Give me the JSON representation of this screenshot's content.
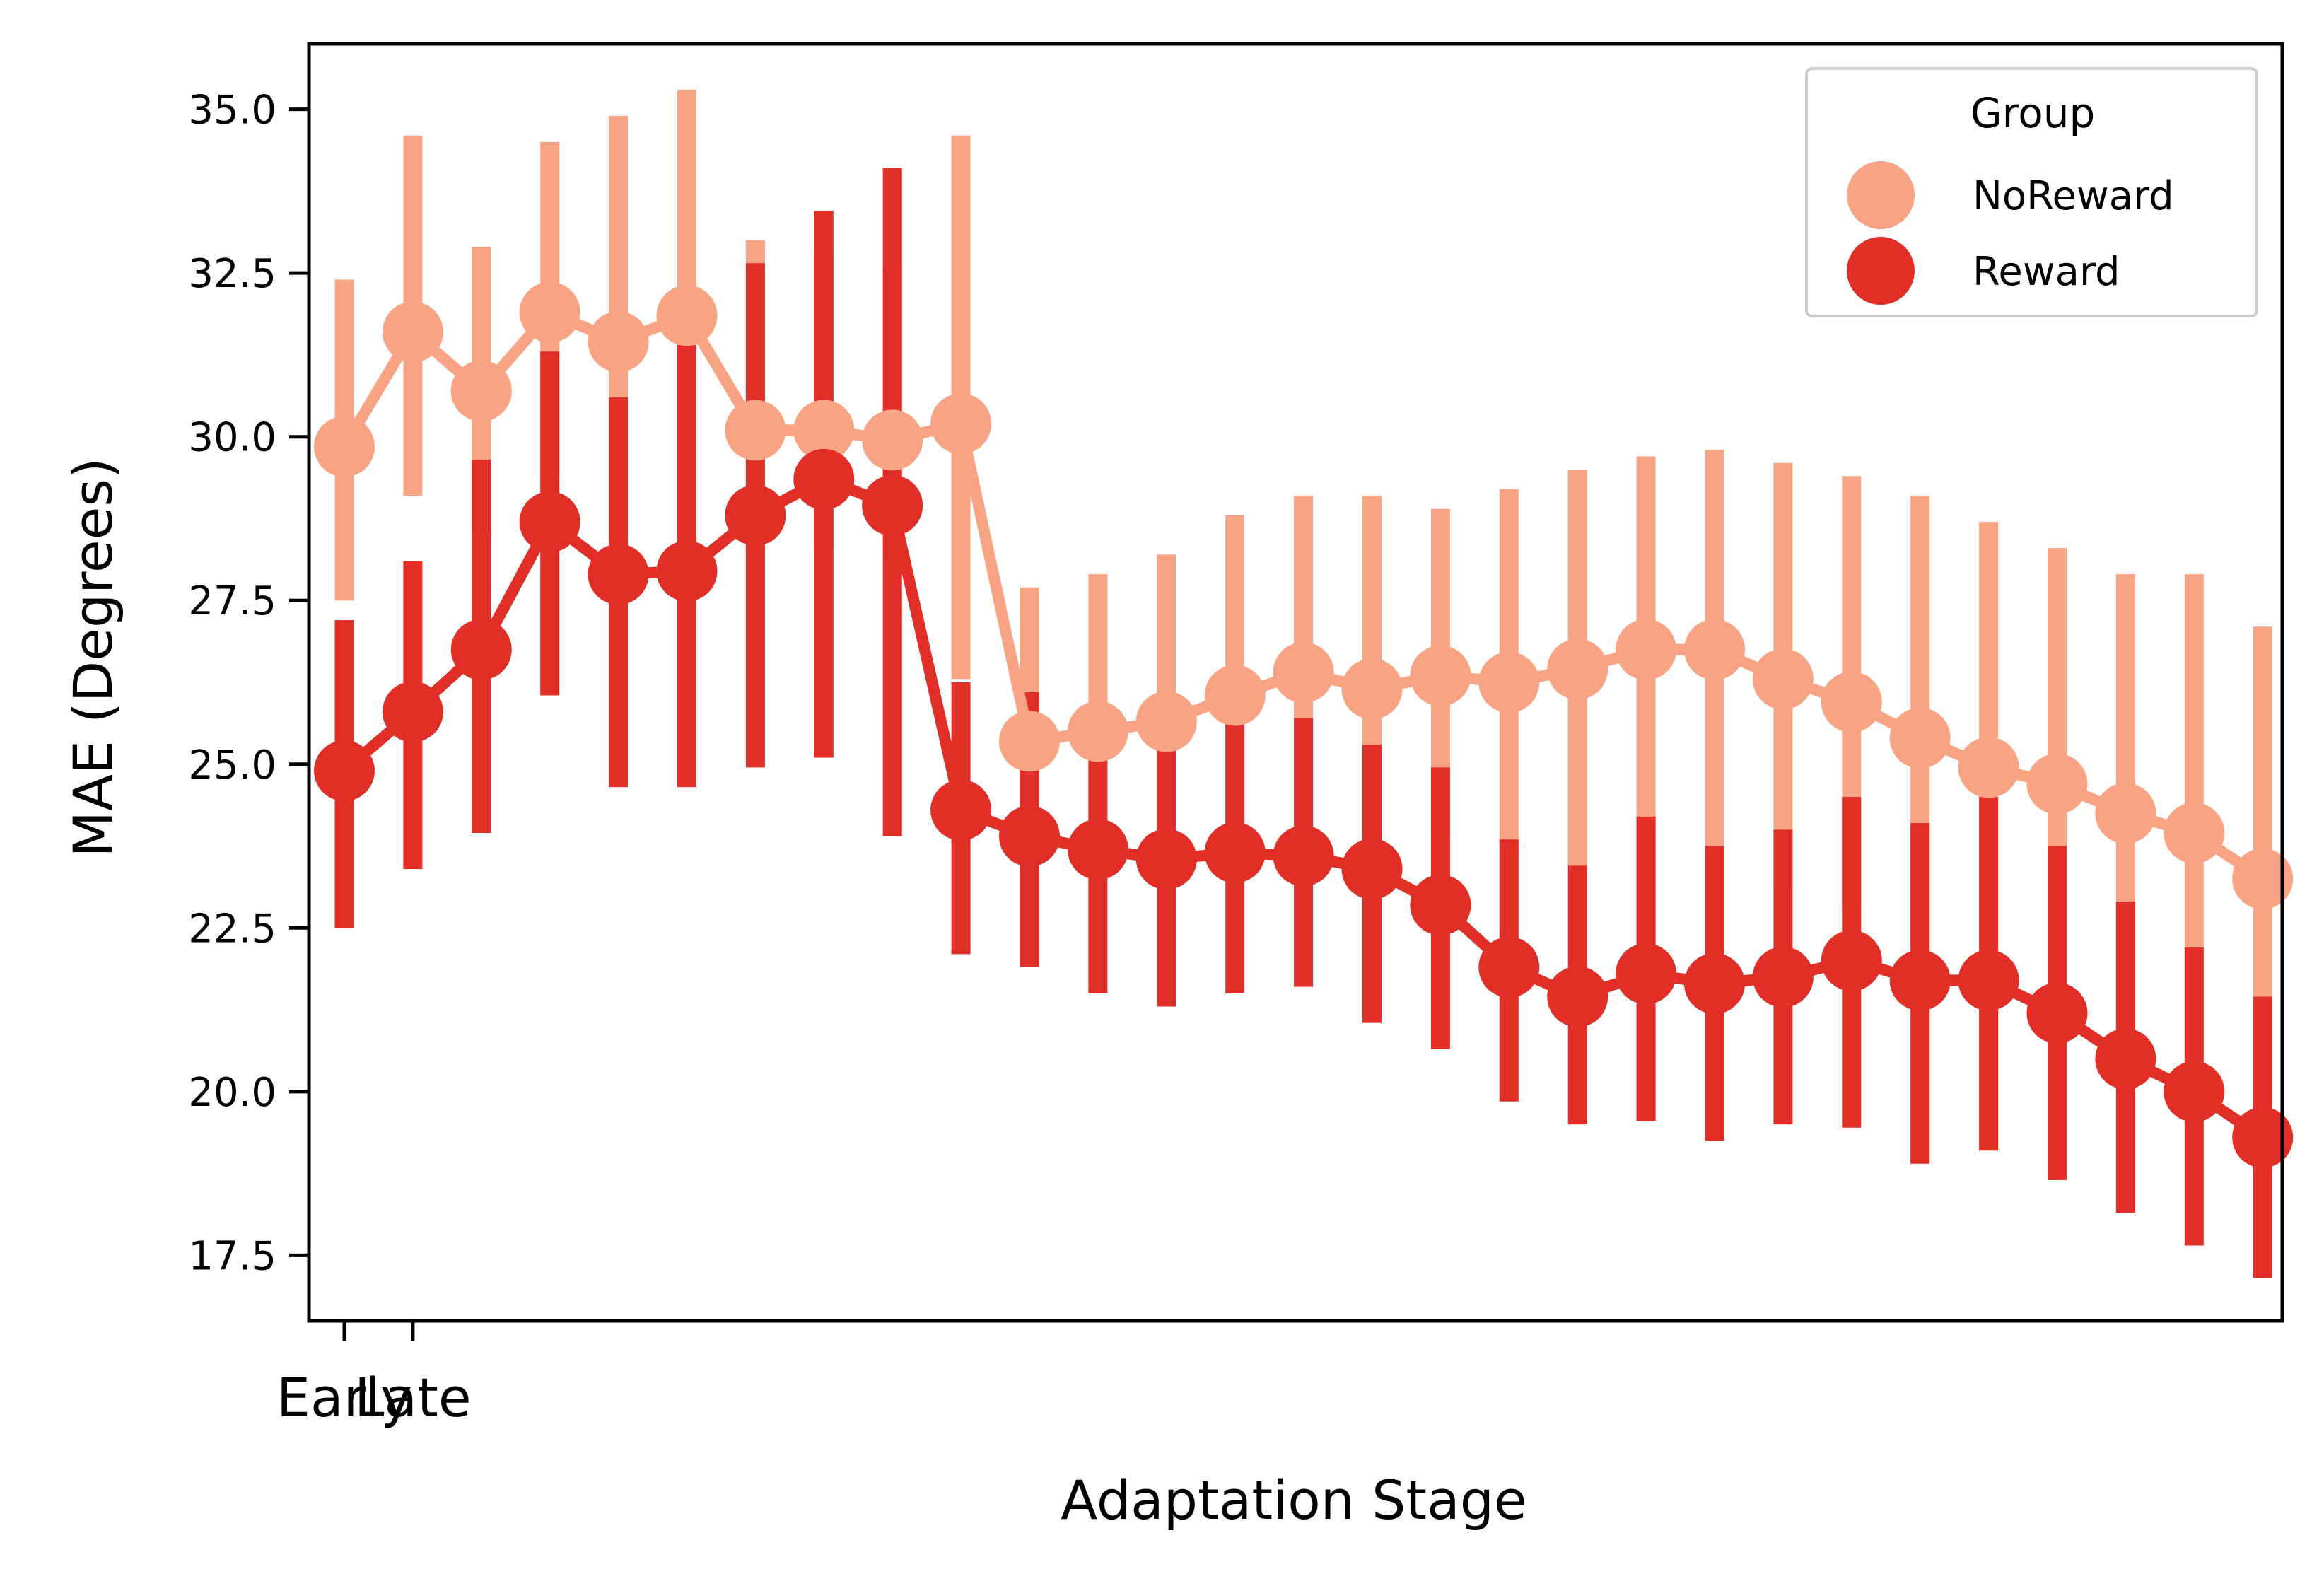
{
  "chart_data": {
    "type": "line",
    "xlabel": "Adaptation Stage",
    "ylabel": "MAE (Degrees)",
    "x_tick_labels": [
      "Early",
      "Late"
    ],
    "ylim": [
      16.5,
      36.0
    ],
    "yticks": [
      17.5,
      20.0,
      22.5,
      25.0,
      27.5,
      30.0,
      32.5,
      35.0
    ],
    "ytick_labels": [
      "17.5",
      "20.0",
      "22.5",
      "25.0",
      "27.5",
      "30.0",
      "32.5",
      "35.0"
    ],
    "grid": false,
    "legend": {
      "title": "Group",
      "placement": "top-right"
    },
    "n_points": 29,
    "series": [
      {
        "name": "NoReward",
        "color": "#f9a385",
        "values": [
          29.85,
          31.6,
          30.7,
          31.9,
          31.45,
          31.85,
          30.1,
          30.1,
          29.95,
          30.2,
          25.35,
          25.5,
          25.65,
          26.05,
          26.4,
          26.15,
          26.35,
          26.25,
          26.45,
          26.75,
          26.75,
          26.3,
          25.95,
          25.4,
          24.95,
          24.7,
          24.25,
          23.95,
          23.25
        ],
        "err_low": [
          27.5,
          29.1,
          28.5,
          29.4,
          28.2,
          28.4,
          28.2,
          28.3,
          28.2,
          26.3,
          23.5,
          23.5,
          23.4,
          23.6,
          23.7,
          23.4,
          23.9,
          23.7,
          23.4,
          24.1,
          23.7,
          23.1,
          22.8,
          22.2,
          21.8,
          21.4,
          20.7,
          20.2,
          19.8
        ],
        "err_high": [
          32.4,
          34.6,
          32.9,
          34.5,
          34.9,
          35.3,
          33.0,
          32.8,
          32.6,
          34.6,
          27.7,
          27.9,
          28.2,
          28.8,
          29.1,
          29.1,
          28.9,
          29.2,
          29.5,
          29.7,
          29.8,
          29.6,
          29.4,
          29.1,
          28.7,
          28.3,
          27.9,
          27.9,
          27.1
        ]
      },
      {
        "name": "Reward",
        "color": "#e12e27",
        "values": [
          24.9,
          25.8,
          26.75,
          28.7,
          27.9,
          27.95,
          28.8,
          29.35,
          28.95,
          24.3,
          23.9,
          23.7,
          23.55,
          23.65,
          23.6,
          23.4,
          22.85,
          21.9,
          21.45,
          21.8,
          21.65,
          21.75,
          22.0,
          21.7,
          21.7,
          21.2,
          20.5,
          20.0,
          19.3
        ],
        "err_low": [
          22.5,
          23.4,
          23.95,
          26.05,
          24.65,
          24.65,
          24.95,
          25.1,
          23.9,
          22.1,
          21.9,
          21.5,
          21.3,
          21.5,
          21.6,
          21.05,
          20.65,
          19.85,
          19.5,
          19.55,
          19.25,
          19.5,
          19.45,
          18.9,
          19.1,
          18.65,
          18.15,
          17.65,
          17.15
        ],
        "err_high": [
          27.2,
          28.1,
          29.65,
          31.3,
          30.6,
          31.4,
          32.65,
          33.45,
          34.1,
          26.25,
          26.1,
          25.9,
          25.45,
          25.7,
          25.7,
          25.3,
          24.95,
          23.85,
          23.45,
          24.2,
          23.75,
          24.0,
          24.5,
          24.1,
          24.5,
          23.75,
          22.9,
          22.2,
          21.45
        ]
      }
    ]
  }
}
